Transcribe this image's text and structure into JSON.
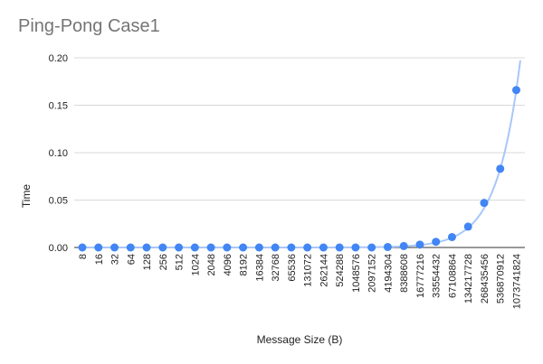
{
  "chart_data": {
    "type": "scatter",
    "title": "Ping-Pong Case1",
    "xlabel": "Message Size (B)",
    "ylabel": "Time",
    "categories": [
      "8",
      "16",
      "32",
      "64",
      "128",
      "256",
      "512",
      "1024",
      "2048",
      "4096",
      "8192",
      "16384",
      "32768",
      "65536",
      "131072",
      "262144",
      "524288",
      "1048576",
      "2097152",
      "4194304",
      "8388608",
      "16777216",
      "33554432",
      "67108864",
      "134217728",
      "268435456",
      "536870912",
      "1073741824"
    ],
    "values": [
      0,
      0,
      0,
      0,
      0,
      0,
      0,
      0,
      0,
      0,
      0,
      0,
      0,
      0,
      0,
      0,
      0,
      0,
      0,
      0.0005,
      0.0015,
      0.003,
      0.006,
      0.011,
      0.022,
      0.047,
      0.083,
      0.166
    ],
    "ylim": [
      0,
      0.2
    ],
    "yticks": [
      "0.00",
      "0.05",
      "0.10",
      "0.15",
      "0.20"
    ],
    "grid": true,
    "trendline": true,
    "colors": {
      "points": "#4285f4",
      "trendline": "#a8c7fa",
      "grid": "#d9d9d9"
    }
  }
}
